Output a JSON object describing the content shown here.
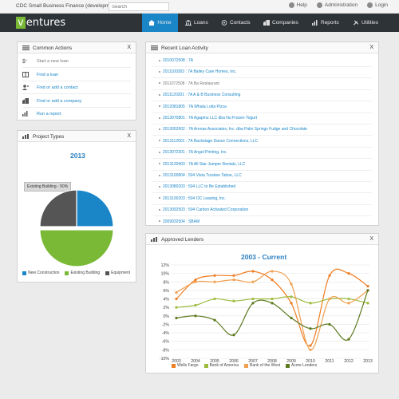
{
  "app": {
    "title": "CDC Small Business Finance (development)"
  },
  "search": {
    "placeholder": "Search"
  },
  "toplinks": [
    {
      "label": "Help"
    },
    {
      "label": "Administration"
    },
    {
      "label": "Login"
    }
  ],
  "logo": {
    "first": "v",
    "rest": "entures"
  },
  "nav": [
    {
      "label": "Home",
      "active": true
    },
    {
      "label": "Loans"
    },
    {
      "label": "Contacts"
    },
    {
      "label": "Companies"
    },
    {
      "label": "Reports"
    },
    {
      "label": "Utilities"
    }
  ],
  "common_actions": {
    "title": "Common Actions",
    "close": "X",
    "items": [
      {
        "label": "Start a new loan",
        "icon": "dollar-icon"
      },
      {
        "label": "Find a loan",
        "icon": "book-icon"
      },
      {
        "label": "Find or add a contact",
        "icon": "person-icon"
      },
      {
        "label": "Find or add a company",
        "icon": "building-icon"
      },
      {
        "label": "Run a report",
        "icon": "chart-icon"
      }
    ]
  },
  "loan_activity": {
    "title": "Recent Loan Activity",
    "close": "X",
    "items": [
      "2010072508 : 7A",
      "2011100303 : 7A Bailey Care Homes, Inc.",
      "2011072508 : 7A Ba Restaurant",
      "2011120201 : 7A A & B Business Consulting",
      "2012081805 : 7A Whata Lotta Pizza",
      "2013070801 : 7A Agapmu LLC dba Nu Frozen Yogurt",
      "2013052602 : 7A Arenas Associates, Inc. dba Palm Springs Fudge and Chocolate",
      "2013112601 : 7A Backstage Dance Connections, LLC",
      "2013072301 : 7A Angel Printing, Inc.",
      "2013120403 : 7A All Star Jumper Rentals, LLC",
      "2013100804 : 504 Vista Turskee Tahoe, LLC",
      "2013080203 : 504 LLC to Be Established",
      "2013100203 : 504 OC Leasing, Inc.",
      "2013092503 : 504 Carbon Activated Corporation",
      "2009032504 : SBAM"
    ]
  },
  "project_types": {
    "title": "Project Types",
    "close": "X",
    "tooltip": "Existing Building - 50%",
    "chart_data": {
      "type": "pie",
      "title": "2013",
      "slices": [
        {
          "label": "New Construction",
          "value": 25,
          "color": "#1a86c8"
        },
        {
          "label": "Existing Building",
          "value": 50,
          "color": "#79b935"
        },
        {
          "label": "Equipment",
          "value": 25,
          "color": "#555555"
        }
      ]
    }
  },
  "approved_lenders": {
    "title": "Approved Lenders",
    "close": "X",
    "chart_data": {
      "type": "line",
      "title": "2003 - Current",
      "x": [
        "2003",
        "2004",
        "2005",
        "2006",
        "2007",
        "2008",
        "2009",
        "2010",
        "2011",
        "2012",
        "2013"
      ],
      "y_ticks": [
        "12%",
        "10%",
        "8%",
        "6%",
        "4%",
        "2%",
        "0%",
        "-2%",
        "-4%",
        "-6%",
        "-8%",
        "-10%"
      ],
      "ylim": [
        -10,
        12
      ],
      "series": [
        {
          "name": "Wells Fargo",
          "color": "#ef7d22",
          "values": [
            4,
            8.5,
            9.5,
            9.5,
            10.5,
            8.5,
            3,
            -7,
            9.5,
            10,
            7
          ]
        },
        {
          "name": "Bank of America",
          "color": "#9bbb3b",
          "values": [
            2,
            2.5,
            4,
            3.5,
            4,
            4,
            4.5,
            3,
            4,
            4,
            3
          ]
        },
        {
          "name": "Bank of the West",
          "color": "#f0a050",
          "values": [
            5.5,
            8,
            8,
            8.5,
            8,
            10.5,
            7.5,
            -8,
            4,
            3,
            6
          ]
        },
        {
          "name": "Acme Lenders",
          "color": "#5d7a1f",
          "values": [
            -0.5,
            0,
            -1,
            -4.5,
            3,
            3,
            -0.5,
            -3,
            -2,
            -5.5,
            6
          ]
        }
      ]
    }
  }
}
